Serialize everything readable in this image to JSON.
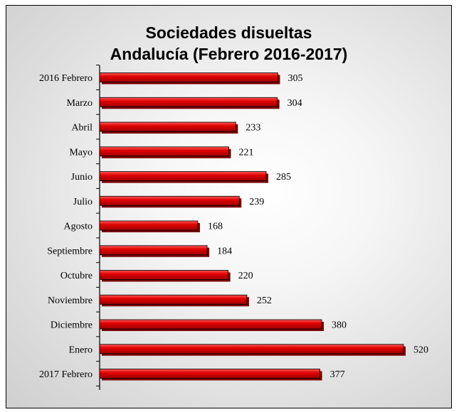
{
  "chart_data": {
    "type": "bar",
    "orientation": "horizontal",
    "title_line1": "Sociedades disueltas",
    "title_line2": "Andalucía (Febrero 2016-2017)",
    "categories": [
      "2016 Febrero",
      "Marzo",
      "Abril",
      "Mayo",
      "Junio",
      "Julio",
      "Agosto",
      "Septiembre",
      "Octubre",
      "Noviembre",
      "Diciembre",
      "Enero",
      "2017 Febrero"
    ],
    "values": [
      305,
      304,
      233,
      221,
      285,
      239,
      168,
      184,
      220,
      252,
      380,
      520,
      377
    ],
    "xlim": [
      0,
      520
    ],
    "grid": false,
    "legend": "none",
    "bar_color": "#e00000",
    "bar_shadow_color": "#7a0000",
    "background_color": "#e0e0e0"
  }
}
